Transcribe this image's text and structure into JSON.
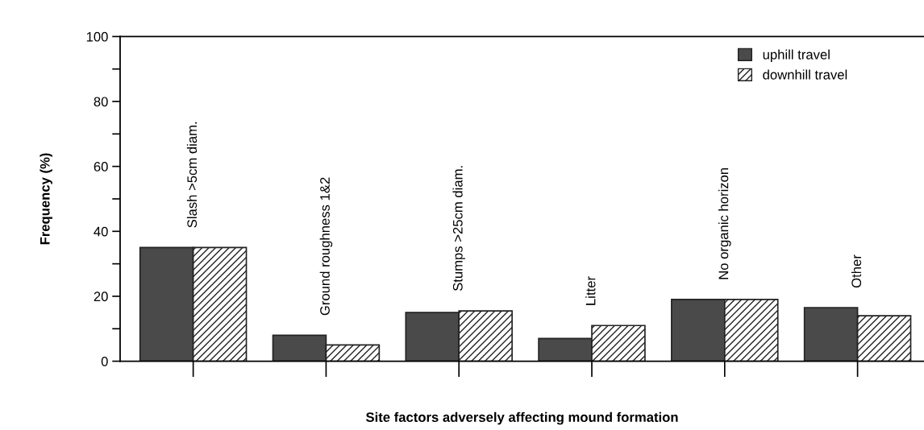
{
  "chart_data": {
    "type": "bar",
    "xlabel": "Site factors adversely affecting mound formation",
    "ylabel": "Frequency (%)",
    "categories": [
      "Slash >5cm diam.",
      "Ground roughness 1&2",
      "Stumps >25cm diam.",
      "Litter",
      "No organic horizon",
      "Other"
    ],
    "series": [
      {
        "name": "uphill travel",
        "color": "#4a4a4a",
        "values": [
          35,
          8,
          15,
          7,
          19,
          16.5
        ]
      },
      {
        "name": "downhill travel",
        "color": "#222222",
        "values": [
          35,
          5,
          15.5,
          11,
          19,
          14
        ]
      }
    ],
    "ylim": [
      0,
      100
    ],
    "yticks": [
      0,
      {
        "value": 10,
        "label": null
      },
      20,
      {
        "value": 30,
        "label": null
      },
      40,
      {
        "value": 50,
        "label": null
      },
      60,
      {
        "value": 70,
        "label": null
      },
      80,
      {
        "value": 90,
        "label": null
      },
      100
    ],
    "grid": false,
    "legend": "top right"
  }
}
